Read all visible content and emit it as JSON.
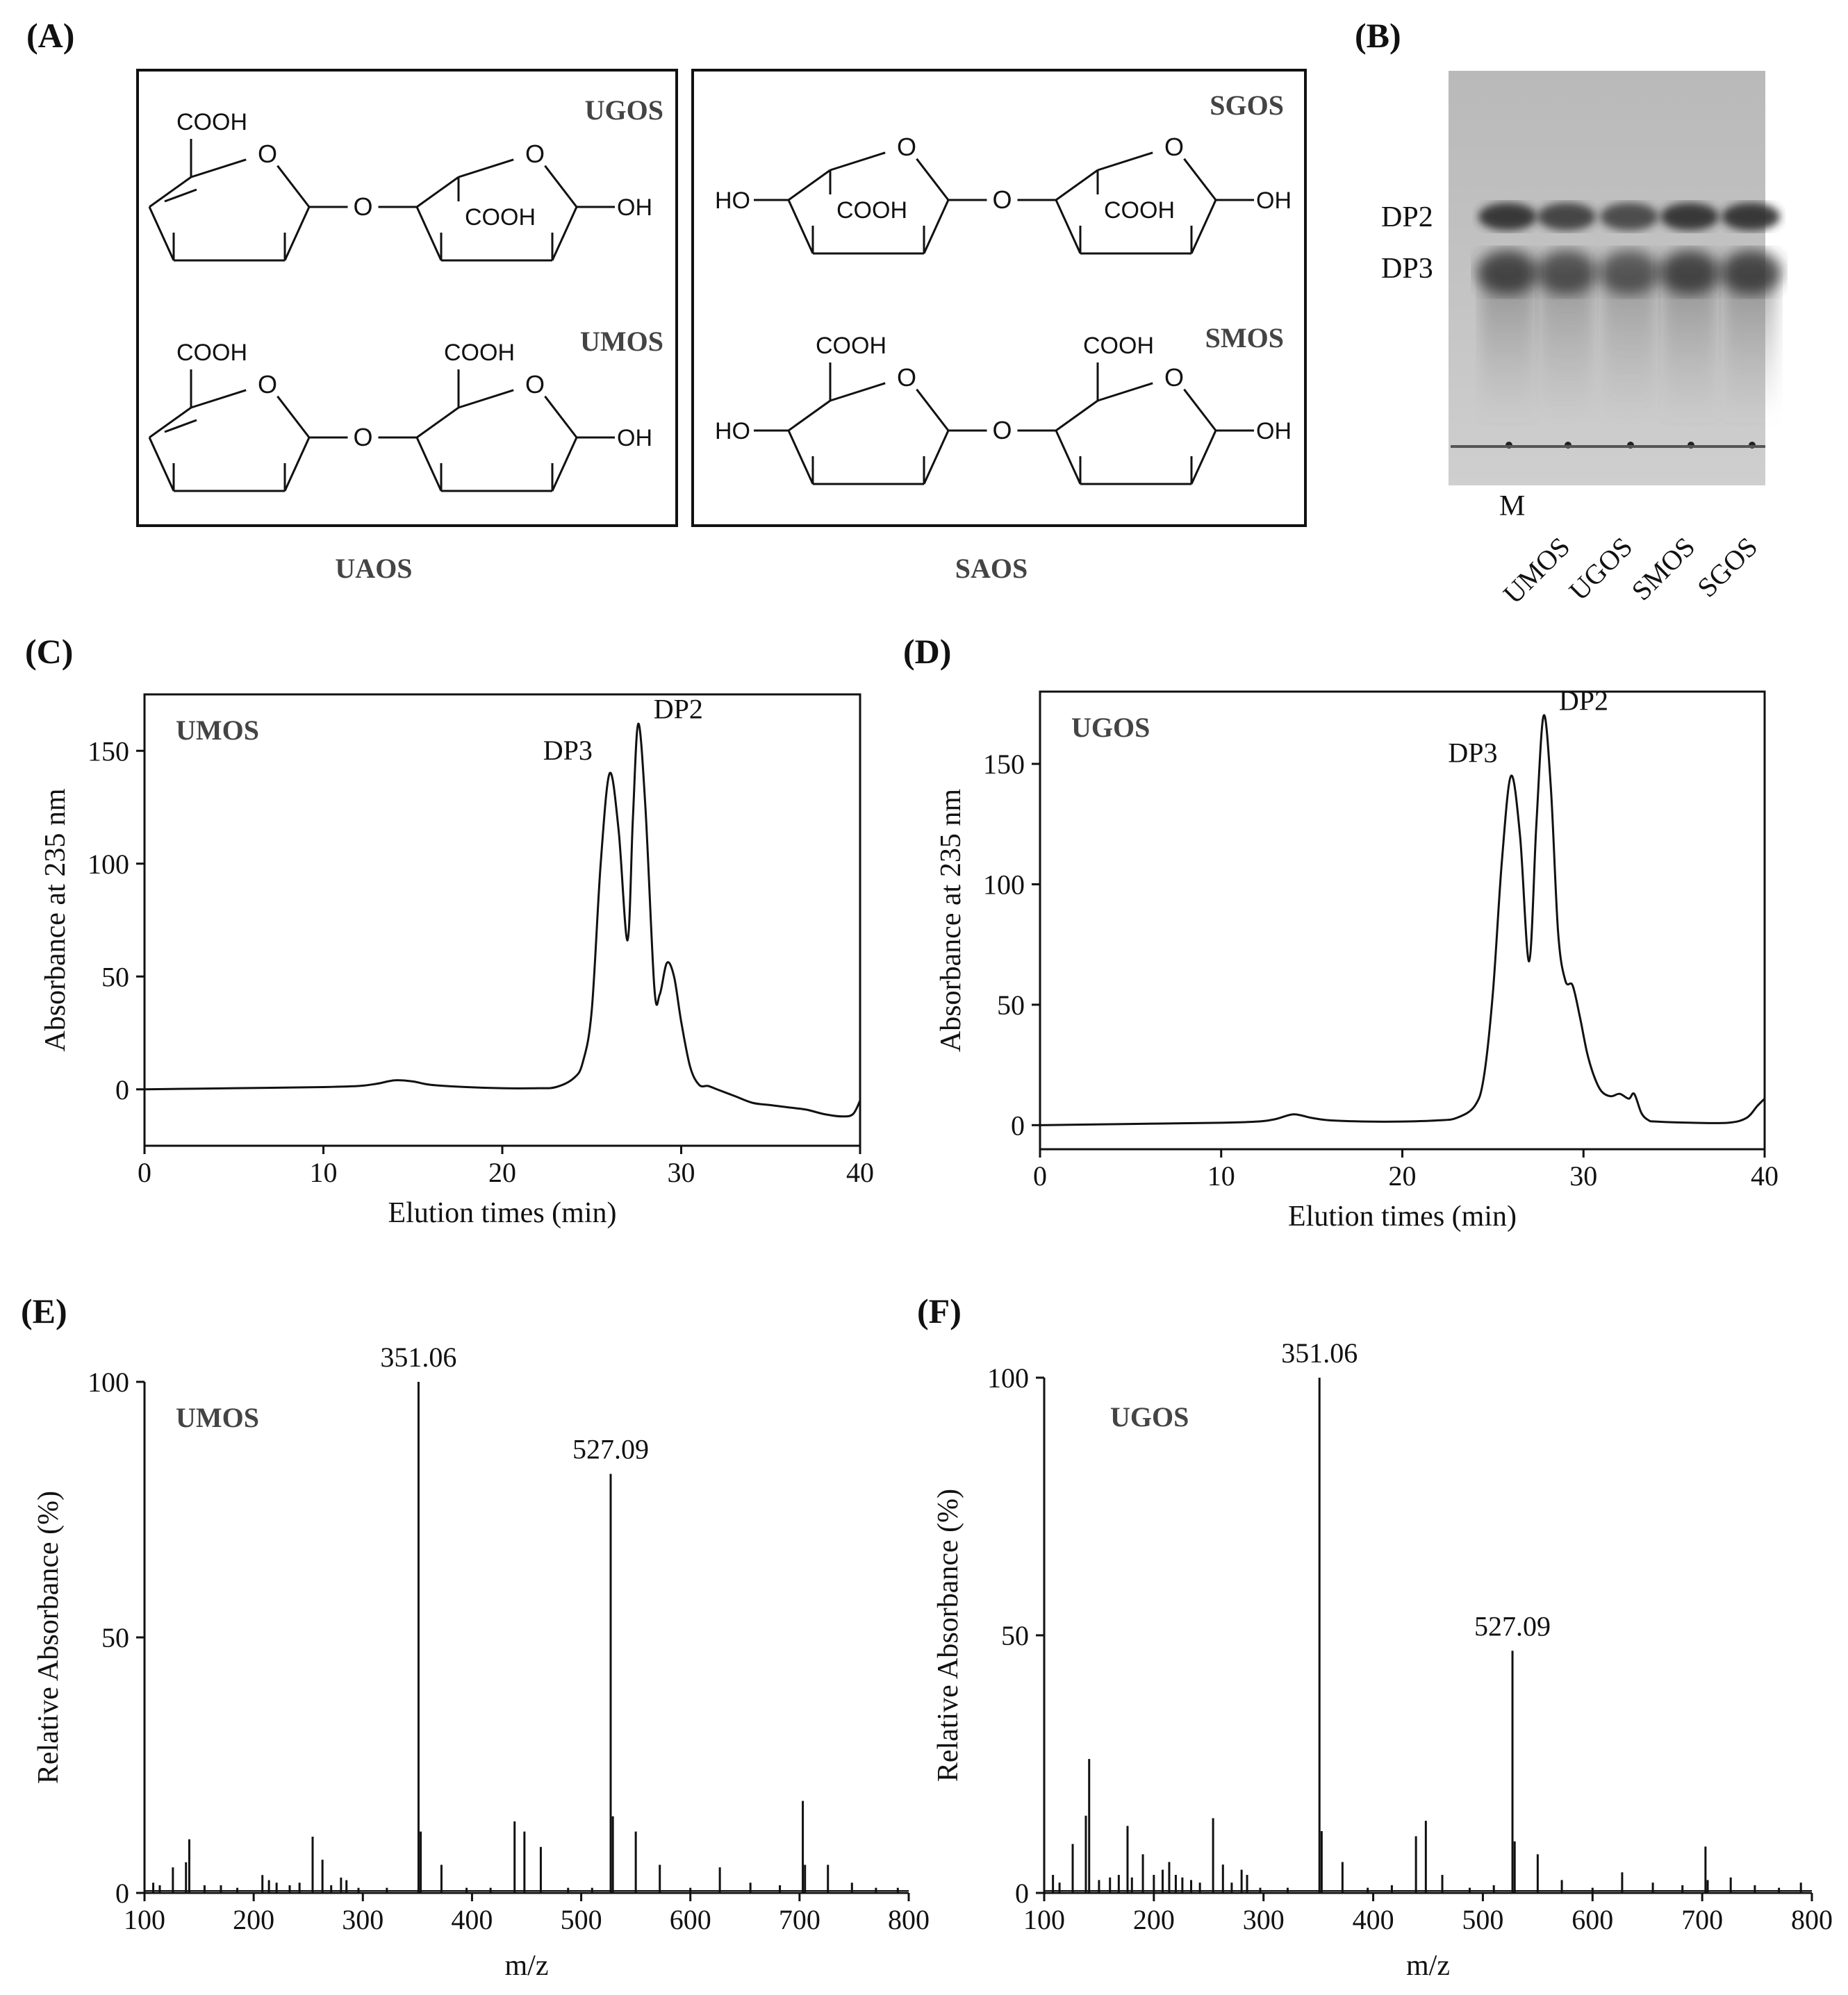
{
  "panels": {
    "A": {
      "label": "(A)",
      "boxes": [
        {
          "caption": "UAOS",
          "top_name": "UGOS",
          "bottom_name": "UMOS"
        },
        {
          "caption": "SAOS",
          "top_name": "SGOS",
          "bottom_name": "SMOS"
        }
      ],
      "atoms": {
        "cooh": "COOH",
        "o": "O",
        "oh": "OH",
        "ho": "HO"
      }
    },
    "B": {
      "label": "(B)",
      "band_labels": [
        "DP2",
        "DP3"
      ],
      "lanes": [
        "M",
        "UMOS",
        "UGOS",
        "SMOS",
        "SGOS"
      ]
    }
  },
  "chart_data": [
    {
      "panel": "(C)",
      "type": "line",
      "inset_label": "UMOS",
      "xlabel": "Elution times (min)",
      "ylabel": "Absorbance at 235 nm",
      "xlim": [
        0,
        40
      ],
      "ylim": [
        -25,
        175
      ],
      "xticks": [
        0,
        10,
        20,
        30,
        40
      ],
      "yticks": [
        0,
        50,
        100,
        150
      ],
      "x": [
        0,
        5,
        10,
        12,
        13,
        14,
        15,
        16,
        18,
        20,
        22,
        23,
        24,
        24.5,
        25,
        25.5,
        26,
        26.5,
        27,
        27.3,
        27.6,
        28,
        28.5,
        28.8,
        29.2,
        29.6,
        30,
        30.5,
        31,
        31.5,
        32,
        33,
        34,
        35,
        36,
        37,
        38,
        39,
        39.6,
        40
      ],
      "y": [
        0,
        0.5,
        1,
        1.5,
        2.5,
        4,
        3.5,
        2,
        1,
        0.5,
        0.5,
        1,
        5,
        12,
        35,
        100,
        140,
        115,
        66,
        120,
        162,
        125,
        45,
        42,
        56,
        50,
        30,
        10,
        2,
        1.5,
        0,
        -3,
        -6,
        -7,
        -8,
        -9,
        -11,
        -12,
        -11,
        -5
      ],
      "annotations": [
        {
          "text": "DP3",
          "x": 25.9,
          "y": 140
        },
        {
          "text": "DP2",
          "x": 27.6,
          "y": 162
        }
      ]
    },
    {
      "panel": "(D)",
      "type": "line",
      "inset_label": "UGOS",
      "xlabel": "Elution times (min)",
      "ylabel": "Absorbance at 235 nm",
      "xlim": [
        0,
        40
      ],
      "ylim": [
        -10,
        180
      ],
      "xticks": [
        0,
        10,
        20,
        30,
        40
      ],
      "yticks": [
        0,
        50,
        100,
        150
      ],
      "x": [
        0,
        5,
        10,
        12,
        13,
        14,
        15,
        16,
        18,
        20,
        22,
        23,
        24,
        24.5,
        25,
        25.5,
        26,
        26.5,
        27,
        27.4,
        27.8,
        28.2,
        28.6,
        29,
        29.4,
        29.8,
        30.2,
        30.6,
        31,
        31.5,
        32,
        32.5,
        32.8,
        33.2,
        33.6,
        34,
        36,
        38,
        39,
        39.6,
        40
      ],
      "y": [
        0,
        0.5,
        1,
        1.5,
        2.5,
        4.5,
        3,
        2,
        1.5,
        1.5,
        2,
        3,
        8,
        20,
        55,
        110,
        145,
        120,
        68,
        125,
        170,
        140,
        80,
        60,
        58,
        45,
        30,
        20,
        14,
        12,
        13,
        11,
        13,
        5,
        2,
        1.5,
        1,
        1,
        3,
        8,
        11
      ],
      "annotations": [
        {
          "text": "DP3",
          "x": 26.1,
          "y": 145
        },
        {
          "text": "DP2",
          "x": 27.8,
          "y": 170
        }
      ]
    },
    {
      "panel": "(E)",
      "type": "bar",
      "inset_label": "UMOS",
      "xlabel": "m/z",
      "ylabel": "Relative Absorbance (%)",
      "xlim": [
        100,
        800
      ],
      "ylim": [
        0,
        100
      ],
      "xticks": [
        100,
        200,
        300,
        400,
        500,
        600,
        700,
        800
      ],
      "yticks": [
        0,
        50,
        100
      ],
      "x": [
        108,
        114,
        126,
        138,
        141,
        155,
        170,
        185,
        208,
        214,
        221,
        233,
        242,
        254,
        263,
        271,
        280,
        285,
        296,
        322,
        351,
        353,
        372,
        395,
        417,
        439,
        448,
        463,
        488,
        510,
        527,
        529,
        550,
        572,
        600,
        627,
        655,
        682,
        703,
        705,
        726,
        748,
        770,
        790
      ],
      "y": [
        2,
        1.5,
        5,
        6,
        10.5,
        1.5,
        1.5,
        1,
        3.5,
        2.5,
        2,
        1.5,
        2,
        11,
        6.5,
        1.5,
        3,
        2.5,
        1,
        1,
        100,
        12,
        5.5,
        1,
        1,
        14,
        12,
        9,
        1,
        1,
        82,
        15,
        12,
        5.5,
        1,
        5,
        2,
        1.5,
        18,
        5.5,
        5.5,
        2,
        1,
        1
      ],
      "annotations": [
        {
          "text": "351.06",
          "x": 351,
          "y": 100
        },
        {
          "text": "527.09",
          "x": 527,
          "y": 82
        }
      ]
    },
    {
      "panel": "(F)",
      "type": "bar",
      "inset_label": "UGOS",
      "xlabel": "m/z",
      "ylabel": "Relative Absorbance (%)",
      "xlim": [
        100,
        800
      ],
      "ylim": [
        0,
        100
      ],
      "xticks": [
        100,
        200,
        300,
        400,
        500,
        600,
        700,
        800
      ],
      "yticks": [
        0,
        50,
        100
      ],
      "x": [
        108,
        114,
        126,
        138,
        141,
        150,
        160,
        168,
        176,
        180,
        190,
        200,
        208,
        214,
        220,
        226,
        234,
        242,
        254,
        263,
        271,
        280,
        285,
        297,
        322,
        351,
        353,
        372,
        395,
        417,
        439,
        448,
        463,
        488,
        510,
        527,
        529,
        550,
        572,
        600,
        627,
        655,
        682,
        703,
        705,
        726,
        748,
        770,
        790
      ],
      "y": [
        3.5,
        2,
        9.5,
        15,
        26,
        2.5,
        3,
        3.5,
        13,
        3,
        7.5,
        3.5,
        4.5,
        6,
        3.5,
        3,
        2.5,
        2,
        14.5,
        5.5,
        2,
        4.5,
        3.5,
        1,
        1,
        100,
        12,
        6,
        1,
        1.5,
        11,
        14,
        3.5,
        1,
        1.5,
        47,
        10,
        7.5,
        2.5,
        1,
        4,
        2,
        1.5,
        9,
        2.5,
        3,
        1.5,
        1,
        2
      ],
      "annotations": [
        {
          "text": "351.06",
          "x": 351,
          "y": 100
        },
        {
          "text": "527.09",
          "x": 527,
          "y": 47
        }
      ]
    }
  ]
}
